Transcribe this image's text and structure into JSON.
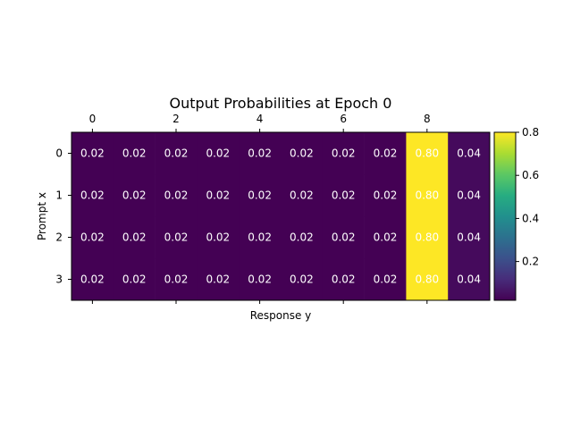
{
  "chart_data": {
    "type": "heatmap",
    "title": "Output Probabilities at Epoch 0",
    "xlabel": "Response y",
    "ylabel": "Prompt x",
    "x_ticks": [
      0,
      2,
      4,
      6,
      8
    ],
    "y_ticks": [
      0,
      1,
      2,
      3
    ],
    "colormap": "viridis",
    "color_range": [
      0.02,
      0.8
    ],
    "colorbar_ticks": [
      0.2,
      0.4,
      0.6,
      0.8
    ],
    "values": [
      [
        0.02,
        0.02,
        0.02,
        0.02,
        0.02,
        0.02,
        0.02,
        0.02,
        0.8,
        0.04
      ],
      [
        0.02,
        0.02,
        0.02,
        0.02,
        0.02,
        0.02,
        0.02,
        0.02,
        0.8,
        0.04
      ],
      [
        0.02,
        0.02,
        0.02,
        0.02,
        0.02,
        0.02,
        0.02,
        0.02,
        0.8,
        0.04
      ],
      [
        0.02,
        0.02,
        0.02,
        0.02,
        0.02,
        0.02,
        0.02,
        0.02,
        0.8,
        0.04
      ]
    ],
    "cell_label_color": "#ffffff"
  }
}
